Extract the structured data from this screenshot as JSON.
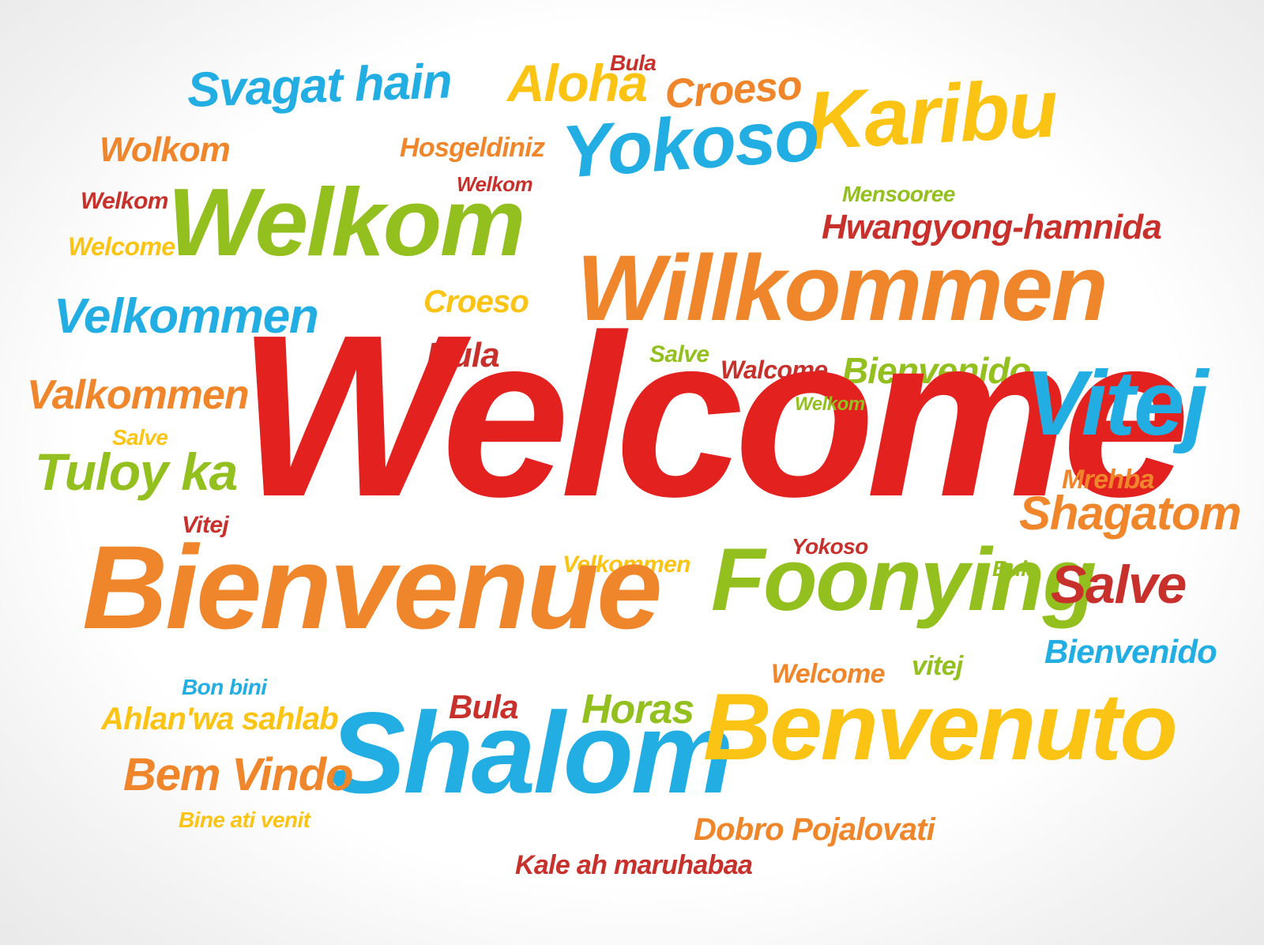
{
  "words": {
    "svagat_hain": "Svagat hain",
    "aloha": "Aloha",
    "bula_top": "Bula",
    "croeso_top": "Croeso",
    "karibu": "Karibu",
    "wolkom": "Wolkom",
    "hosgeldiniz": "Hosgeldiniz",
    "yokoso_big": "Yokoso",
    "welkom_small_center": "Welkom",
    "welkom_small_left": "Welkom",
    "welkom_big": "Welkom",
    "mensooree": "Mensooree",
    "hwangyong": "Hwangyong-hamnida",
    "welcome_small_left": "Welcome",
    "willkommen": "Willkommen",
    "velkommen_big": "Velkommen",
    "croeso_mid": "Croeso",
    "bula_mid": "Bula",
    "salve_mid": "Salve",
    "walcome": "Walcome",
    "bienvenido_mid": "Bienvenido",
    "valkommen": "Valkommen",
    "welcome_main": "Welcome",
    "welkom_tiny": "Welkom",
    "vitej_big": "Vitej",
    "salve_left": "Salve",
    "tuloy_ka": "Tuloy ka",
    "mrehba": "Mrehba",
    "shagatom": "Shagatom",
    "vitej_small": "Vitej",
    "yokoso_small": "Yokoso",
    "velkommen_small": "Velkommen",
    "bienvenue": "Bienvenue",
    "foonying": "Foonying",
    "bula_right": "Bula",
    "salve_right": "Salve",
    "bienvenido_right": "Bienvenido",
    "welcome_small_mid": "Welcome",
    "vitej_lower": "vitej",
    "bon_bini": "Bon bini",
    "ahlan": "Ahlan'wa sahlab",
    "bula_low": "Bula",
    "horas": "Horas",
    "shalom": "Shalom",
    "benvenuto": "Benvenuto",
    "bem_vindo": "Bem Vindo",
    "bine_ati_venit": "Bine ati venit",
    "dobro": "Dobro Pojalovati",
    "kale": "Kale ah maruhabaa"
  }
}
